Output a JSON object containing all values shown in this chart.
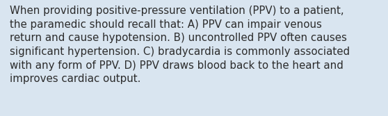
{
  "text": "When providing positive-pressure ventilation (PPV) to a patient,\nthe paramedic should recall that: A) PPV can impair venous\nreturn and cause hypotension. B) uncontrolled PPV often causes\nsignificant hypertension. C) bradycardia is commonly associated\nwith any form of PPV. D) PPV draws blood back to the heart and\nimproves cardiac output.",
  "background_color": "#d9e5f0",
  "text_color": "#2b2b2b",
  "font_size": 10.8,
  "fig_width": 5.58,
  "fig_height": 1.67
}
